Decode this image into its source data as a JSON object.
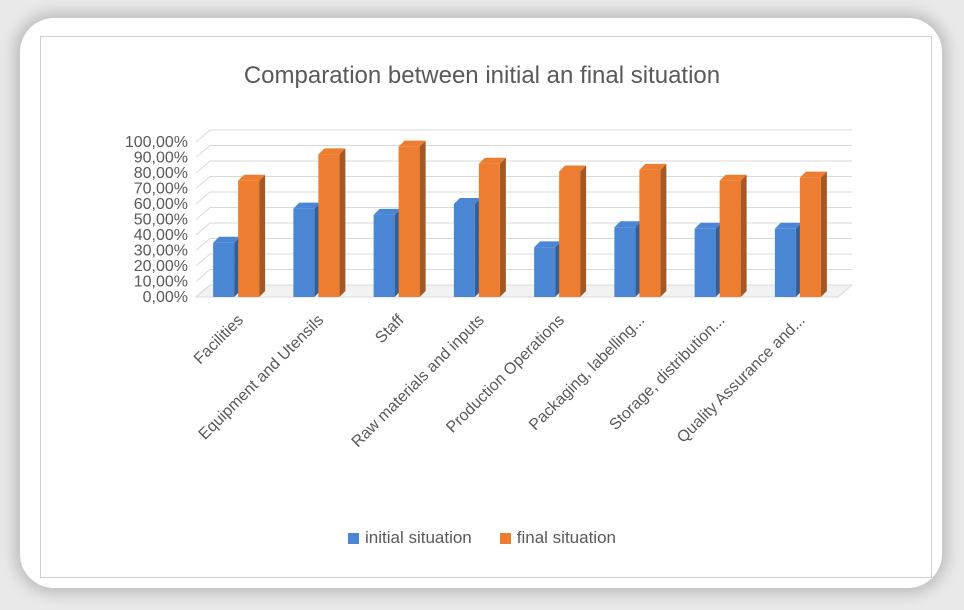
{
  "chart_data": {
    "type": "bar",
    "title": "Comparation between initial an final situation",
    "categories": [
      "Facilities",
      "Equipment and Utensils",
      "Staff",
      "Raw materials and inputs",
      "Production Operations",
      "Packaging, labelling...",
      "Storage, distribution...",
      "Quality Assurance and..."
    ],
    "series": [
      {
        "name": "initial situation",
        "color": "#4a86d4",
        "values": [
          35,
          57,
          53,
          60,
          32,
          45,
          44,
          44
        ]
      },
      {
        "name": "final situation",
        "color": "#ed7d31",
        "values": [
          75,
          92,
          97,
          86,
          81,
          82,
          75,
          77
        ]
      }
    ],
    "yticks": [
      "0,00%",
      "10,00%",
      "20,00%",
      "30,00%",
      "40,00%",
      "50,00%",
      "60,00%",
      "70,00%",
      "80,00%",
      "90,00%",
      "100,00%"
    ],
    "ylim": [
      0,
      100
    ],
    "grid": true,
    "legend": "bottom",
    "style": "3d-clustered-column"
  }
}
